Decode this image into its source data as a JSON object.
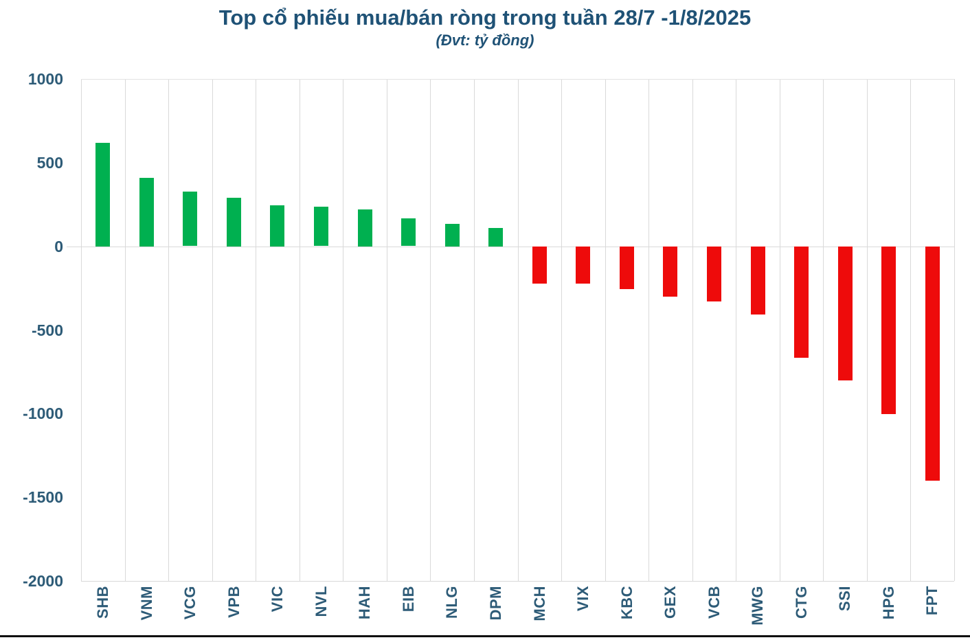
{
  "header": {
    "title": "Top cổ phiếu mua/bán ròng trong tuần 28/7 -1/8/2025",
    "subtitle": "(Đvt: tỷ đồng)"
  },
  "chart_data": {
    "type": "bar",
    "title": "Top cổ phiếu mua/bán ròng trong tuần 28/7 -1/8/2025",
    "unit_label": "(Đvt: tỷ đồng)",
    "categories": [
      "SHB",
      "VNM",
      "VCG",
      "VPB",
      "VIC",
      "NVL",
      "HAH",
      "EIB",
      "NLG",
      "DPM",
      "MCH",
      "VIX",
      "KBC",
      "GEX",
      "VCB",
      "MWG",
      "CTG",
      "SSI",
      "HPG",
      "FPT"
    ],
    "values": [
      620,
      410,
      325,
      290,
      245,
      235,
      220,
      165,
      135,
      110,
      -220,
      -220,
      -255,
      -300,
      -330,
      -405,
      -665,
      -800,
      -1000,
      -1400
    ],
    "xlabel": "",
    "ylabel": "",
    "ylim": [
      -2000,
      1000
    ],
    "yticks": [
      1000,
      500,
      0,
      -500,
      -1000,
      -1500,
      -2000
    ],
    "grid": "vertical-only",
    "legend": "none",
    "bar_colors_rule": "positive=green, negative=red"
  },
  "colors": {
    "positive": "#00b050",
    "negative": "#ee0b0b",
    "gridline": "#d9d9d9",
    "text": "#2d5b77",
    "title": "#1f5276",
    "bottom_rule": "#0c0c0c"
  }
}
